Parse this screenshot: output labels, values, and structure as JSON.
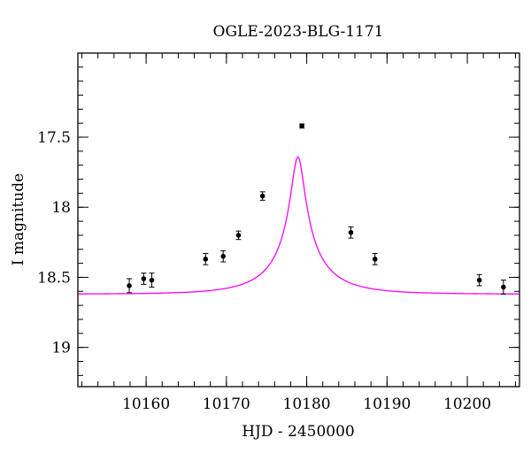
{
  "chart_data": {
    "type": "scatter",
    "title": "OGLE-2023-BLG-1171",
    "xlabel": "HJD - 2450000",
    "ylabel": "I magnitude",
    "xlim": [
      10151.5,
      10206.5
    ],
    "ylim": [
      19.28,
      16.9
    ],
    "y_inverted": true,
    "x_major_ticks": [
      10160,
      10170,
      10180,
      10190,
      10200
    ],
    "x_minor_step": 2,
    "y_major_ticks": [
      17.5,
      18,
      18.5,
      19
    ],
    "y_minor_step": 0.1,
    "grid": false,
    "colors": {
      "model": "#ff00ff",
      "points": "#000000"
    },
    "model_curve": {
      "label": "",
      "type": "point-lens",
      "t0": 10178.9,
      "u0": 0.11,
      "tE": 7.3,
      "fs": 0.18,
      "base_mag": 18.62
    },
    "series": [
      {
        "x": [
          10157.9,
          10159.7,
          10160.7,
          10167.4,
          10169.6,
          10171.5,
          10174.5,
          10179.4,
          10185.5,
          10188.5,
          10201.5,
          10204.5
        ],
        "y": [
          18.56,
          18.51,
          18.52,
          18.37,
          18.35,
          18.2,
          17.92,
          17.42,
          18.18,
          18.37,
          18.52,
          18.57
        ],
        "err": [
          0.05,
          0.04,
          0.05,
          0.04,
          0.04,
          0.03,
          0.03,
          0.015,
          0.04,
          0.04,
          0.04,
          0.05
        ]
      }
    ]
  }
}
